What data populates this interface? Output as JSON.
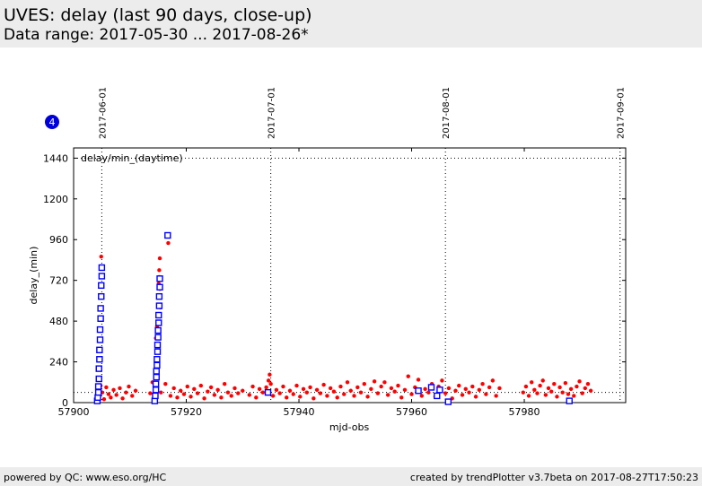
{
  "header": {
    "title": "UVES: delay (last 90 days, close-up)",
    "subtitle": "Data range: 2017-05-30 ... 2017-08-26*"
  },
  "footer": {
    "left": "powered by QC: www.eso.org/HC",
    "right": "created by trendPlotter v3.7beta on 2017-08-27T17:50:23"
  },
  "chart_data": {
    "type": "scatter",
    "legend_text": "delay/min_(daytime)",
    "badge": "4",
    "xlabel": "mjd-obs",
    "ylabel": "delay_(min)",
    "xlim": [
      57900,
      57998
    ],
    "ylim": [
      0,
      1500
    ],
    "x_ticks": [
      57900,
      57920,
      57940,
      57960,
      57980
    ],
    "y_ticks": [
      0,
      240,
      480,
      720,
      960,
      1200,
      1440
    ],
    "reference_lines_y": [
      1440,
      60
    ],
    "date_markers": [
      {
        "label": "2017-06-01",
        "mjd": 57905
      },
      {
        "label": "2017-07-01",
        "mjd": 57935
      },
      {
        "label": "2017-08-01",
        "mjd": 57966
      },
      {
        "label": "2017-09-01",
        "mjd": 57997
      }
    ],
    "colors": {
      "red_series": "#ff0000",
      "blue_series": "#0000ff",
      "badge": "#0000dd"
    },
    "series": [
      {
        "marker": "dot",
        "color": "#ff0000",
        "points": [
          [
            57904.2,
            80
          ],
          [
            57904.5,
            40
          ],
          [
            57904.8,
            100
          ],
          [
            57904.9,
            860
          ],
          [
            57905.1,
            60
          ],
          [
            57905.4,
            20
          ],
          [
            57905.8,
            90
          ],
          [
            57906.2,
            50
          ],
          [
            57906.6,
            30
          ],
          [
            57907.1,
            75
          ],
          [
            57907.6,
            45
          ],
          [
            57908.2,
            85
          ],
          [
            57908.7,
            25
          ],
          [
            57909.3,
            60
          ],
          [
            57909.8,
            95
          ],
          [
            57910.4,
            40
          ],
          [
            57911.0,
            70
          ],
          [
            57913.6,
            55
          ],
          [
            57914.0,
            120
          ],
          [
            57914.3,
            40
          ],
          [
            57914.6,
            380
          ],
          [
            57914.8,
            450
          ],
          [
            57915.0,
            520
          ],
          [
            57915.0,
            620
          ],
          [
            57915.1,
            700
          ],
          [
            57915.2,
            740
          ],
          [
            57915.2,
            780
          ],
          [
            57915.3,
            850
          ],
          [
            57915.3,
            670
          ],
          [
            57915.4,
            560
          ],
          [
            57915.5,
            60
          ],
          [
            57916.3,
            110
          ],
          [
            57916.8,
            940
          ],
          [
            57917.2,
            40
          ],
          [
            57917.8,
            85
          ],
          [
            57918.4,
            30
          ],
          [
            57919.0,
            70
          ],
          [
            57919.6,
            50
          ],
          [
            57920.2,
            95
          ],
          [
            57920.8,
            35
          ],
          [
            57921.4,
            80
          ],
          [
            57922.0,
            55
          ],
          [
            57922.6,
            100
          ],
          [
            57923.2,
            25
          ],
          [
            57923.8,
            65
          ],
          [
            57924.4,
            90
          ],
          [
            57925.0,
            45
          ],
          [
            57925.6,
            75
          ],
          [
            57926.2,
            30
          ],
          [
            57926.8,
            110
          ],
          [
            57927.4,
            60
          ],
          [
            57928.0,
            40
          ],
          [
            57928.6,
            85
          ],
          [
            57929.2,
            55
          ],
          [
            57930.0,
            70
          ],
          [
            57931.2,
            45
          ],
          [
            57931.8,
            95
          ],
          [
            57932.4,
            30
          ],
          [
            57933.0,
            80
          ],
          [
            57933.6,
            60
          ],
          [
            57934.2,
            90
          ],
          [
            57934.6,
            130
          ],
          [
            57934.8,
            165
          ],
          [
            57935.0,
            110
          ],
          [
            57935.4,
            40
          ],
          [
            57936.0,
            75
          ],
          [
            57936.6,
            55
          ],
          [
            57937.2,
            95
          ],
          [
            57937.8,
            30
          ],
          [
            57938.4,
            70
          ],
          [
            57939.0,
            50
          ],
          [
            57939.6,
            100
          ],
          [
            57940.2,
            35
          ],
          [
            57940.8,
            80
          ],
          [
            57941.4,
            60
          ],
          [
            57942.0,
            90
          ],
          [
            57942.6,
            25
          ],
          [
            57943.2,
            75
          ],
          [
            57943.8,
            55
          ],
          [
            57944.4,
            105
          ],
          [
            57945.0,
            40
          ],
          [
            57945.6,
            85
          ],
          [
            57946.2,
            65
          ],
          [
            57946.8,
            30
          ],
          [
            57947.4,
            95
          ],
          [
            57948.0,
            50
          ],
          [
            57948.6,
            120
          ],
          [
            57949.2,
            70
          ],
          [
            57949.8,
            40
          ],
          [
            57950.4,
            90
          ],
          [
            57951.0,
            60
          ],
          [
            57951.6,
            110
          ],
          [
            57952.2,
            35
          ],
          [
            57952.8,
            80
          ],
          [
            57953.4,
            125
          ],
          [
            57954.0,
            55
          ],
          [
            57954.6,
            95
          ],
          [
            57955.2,
            120
          ],
          [
            57955.8,
            45
          ],
          [
            57956.4,
            85
          ],
          [
            57957.0,
            65
          ],
          [
            57957.6,
            100
          ],
          [
            57958.2,
            30
          ],
          [
            57958.8,
            75
          ],
          [
            57959.4,
            155
          ],
          [
            57960.0,
            50
          ],
          [
            57960.6,
            90
          ],
          [
            57961.2,
            135
          ],
          [
            57961.8,
            40
          ],
          [
            57962.4,
            80
          ],
          [
            57963.0,
            60
          ],
          [
            57963.6,
            110
          ],
          [
            57964.2,
            35
          ],
          [
            57964.8,
            95
          ],
          [
            57965.4,
            130
          ],
          [
            57966.0,
            55
          ],
          [
            57966.6,
            85
          ],
          [
            57967.2,
            25
          ],
          [
            57967.8,
            70
          ],
          [
            57968.4,
            100
          ],
          [
            57969.0,
            45
          ],
          [
            57969.6,
            80
          ],
          [
            57970.2,
            60
          ],
          [
            57970.8,
            95
          ],
          [
            57971.4,
            35
          ],
          [
            57972.0,
            75
          ],
          [
            57972.6,
            110
          ],
          [
            57973.2,
            50
          ],
          [
            57973.8,
            90
          ],
          [
            57974.4,
            130
          ],
          [
            57975.0,
            40
          ],
          [
            57975.6,
            85
          ],
          [
            57979.8,
            60
          ],
          [
            57980.3,
            95
          ],
          [
            57980.8,
            40
          ],
          [
            57981.3,
            120
          ],
          [
            57981.8,
            75
          ],
          [
            57982.3,
            55
          ],
          [
            57982.8,
            100
          ],
          [
            57983.3,
            130
          ],
          [
            57983.8,
            45
          ],
          [
            57984.3,
            85
          ],
          [
            57984.8,
            65
          ],
          [
            57985.3,
            110
          ],
          [
            57985.8,
            35
          ],
          [
            57986.3,
            90
          ],
          [
            57986.8,
            60
          ],
          [
            57987.3,
            115
          ],
          [
            57987.8,
            50
          ],
          [
            57988.3,
            80
          ],
          [
            57988.8,
            40
          ],
          [
            57989.3,
            95
          ],
          [
            57989.8,
            125
          ],
          [
            57990.3,
            55
          ],
          [
            57990.8,
            85
          ],
          [
            57991.3,
            110
          ],
          [
            57991.8,
            70
          ]
        ]
      },
      {
        "marker": "square",
        "color": "#0000ff",
        "points": [
          [
            57904.2,
            10
          ],
          [
            57904.3,
            30
          ],
          [
            57904.4,
            60
          ],
          [
            57904.4,
            95
          ],
          [
            57904.5,
            140
          ],
          [
            57904.5,
            200
          ],
          [
            57904.6,
            255
          ],
          [
            57904.6,
            310
          ],
          [
            57904.7,
            370
          ],
          [
            57904.7,
            430
          ],
          [
            57904.8,
            495
          ],
          [
            57904.8,
            555
          ],
          [
            57904.9,
            625
          ],
          [
            57904.9,
            690
          ],
          [
            57905.0,
            745
          ],
          [
            57905.0,
            795
          ],
          [
            57914.4,
            10
          ],
          [
            57914.5,
            40
          ],
          [
            57914.6,
            75
          ],
          [
            57914.6,
            110
          ],
          [
            57914.7,
            150
          ],
          [
            57914.7,
            185
          ],
          [
            57914.8,
            220
          ],
          [
            57914.8,
            255
          ],
          [
            57914.9,
            300
          ],
          [
            57914.9,
            340
          ],
          [
            57915.0,
            385
          ],
          [
            57915.0,
            425
          ],
          [
            57915.1,
            470
          ],
          [
            57915.1,
            515
          ],
          [
            57915.2,
            570
          ],
          [
            57915.2,
            625
          ],
          [
            57915.3,
            680
          ],
          [
            57915.3,
            730
          ],
          [
            57916.7,
            985
          ],
          [
            57934.5,
            60
          ],
          [
            57961.2,
            70
          ],
          [
            57963.5,
            90
          ],
          [
            57964.5,
            40
          ],
          [
            57965.0,
            75
          ],
          [
            57966.5,
            5
          ],
          [
            57988.0,
            10
          ]
        ]
      }
    ]
  }
}
